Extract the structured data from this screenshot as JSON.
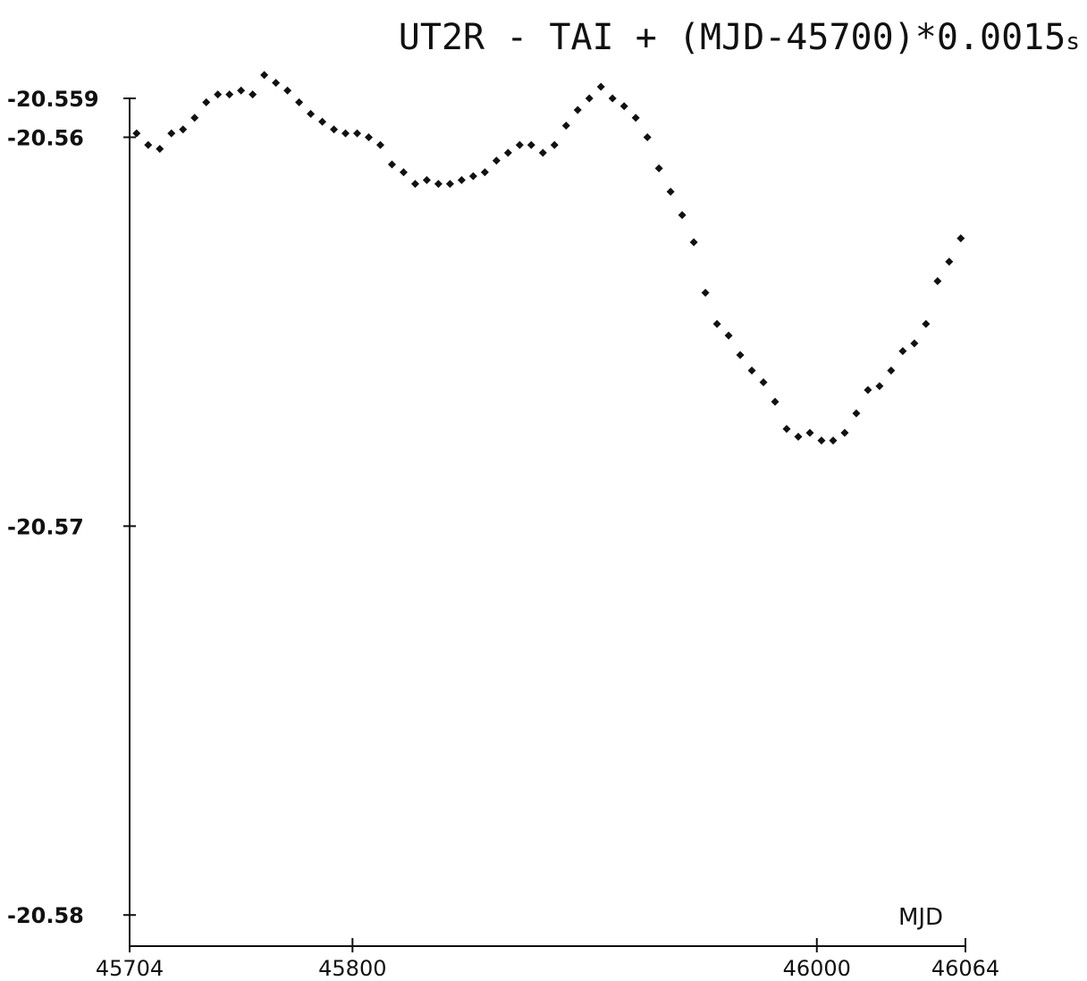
{
  "chart_data": {
    "type": "scatter",
    "title": "UT2R - TAI + (MJD-45700)*0.0015",
    "title_suffix": "s",
    "xlabel": "MJD",
    "ylabel": "",
    "xlim": [
      45704,
      46064
    ],
    "ylim": [
      -20.5808,
      -20.559
    ],
    "x_ticks": [
      {
        "value": 45704,
        "label": "45704"
      },
      {
        "value": 45800,
        "label": "45800"
      },
      {
        "value": 46000,
        "label": "46000"
      },
      {
        "value": 46064,
        "label": "46064"
      }
    ],
    "y_ticks": [
      {
        "value": -20.559,
        "label": "-20.559"
      },
      {
        "value": -20.56,
        "label": "-20.56"
      },
      {
        "value": -20.57,
        "label": "-20.57"
      },
      {
        "value": -20.58,
        "label": "-20.58"
      }
    ],
    "grid": false,
    "marker_color": "#111111",
    "series": [
      {
        "x": [
          45707,
          45712,
          45717,
          45722,
          45727,
          45732,
          45737,
          45742,
          45747,
          45752,
          45757,
          45762,
          45767,
          45772,
          45777,
          45782,
          45787,
          45792,
          45797,
          45802,
          45807,
          45812,
          45817,
          45822,
          45827,
          45832,
          45837,
          45842,
          45847,
          45852,
          45857,
          45862,
          45867,
          45872,
          45877,
          45882,
          45887,
          45892,
          45897,
          45902,
          45907,
          45912,
          45917,
          45922,
          45927,
          45932,
          45937,
          45942,
          45947,
          45952,
          45957,
          45962,
          45967,
          45972,
          45977,
          45982,
          45987,
          45992,
          45997,
          46002,
          46007,
          46012,
          46017,
          46022,
          46027,
          46032,
          46037,
          46042,
          46047,
          46052,
          46057,
          46062
        ],
        "y": [
          -20.5599,
          -20.5602,
          -20.5603,
          -20.5599,
          -20.5598,
          -20.5595,
          -20.5591,
          -20.5589,
          -20.5589,
          -20.5588,
          -20.5589,
          -20.5584,
          -20.5586,
          -20.5588,
          -20.5591,
          -20.5594,
          -20.5596,
          -20.5598,
          -20.5599,
          -20.5599,
          -20.56,
          -20.5602,
          -20.5607,
          -20.5609,
          -20.5612,
          -20.5611,
          -20.5612,
          -20.5612,
          -20.5611,
          -20.561,
          -20.5609,
          -20.5606,
          -20.5604,
          -20.5602,
          -20.5602,
          -20.5604,
          -20.5602,
          -20.5597,
          -20.5593,
          -20.559,
          -20.5587,
          -20.559,
          -20.5592,
          -20.5595,
          -20.56,
          -20.5608,
          -20.5614,
          -20.562,
          -20.5627,
          -20.564,
          -20.5648,
          -20.5651,
          -20.5656,
          -20.566,
          -20.5663,
          -20.5668,
          -20.5675,
          -20.5677,
          -20.5676,
          -20.5678,
          -20.5678,
          -20.5676,
          -20.5671,
          -20.5665,
          -20.5664,
          -20.566,
          -20.5655,
          -20.5653,
          -20.5648,
          -20.5637,
          -20.5632,
          -20.5626
        ]
      }
    ]
  }
}
